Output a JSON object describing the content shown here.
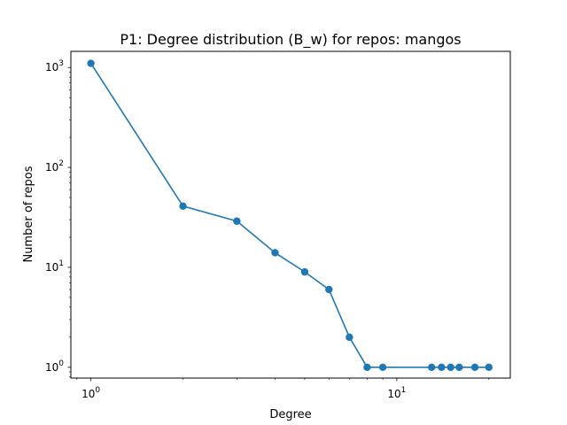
{
  "chart_data": {
    "type": "line",
    "title": "P1: Degree distribution (B_w) for repos: mangos",
    "xlabel": "Degree",
    "ylabel": "Number of repos",
    "xscale": "log",
    "yscale": "log",
    "xlim": [
      0.86,
      23.5
    ],
    "ylim": [
      0.78,
      1450
    ],
    "grid": false,
    "legend": "none",
    "x_ticks": [
      {
        "value": 1,
        "base": "10",
        "exp": "0"
      },
      {
        "value": 10,
        "base": "10",
        "exp": "1"
      }
    ],
    "y_ticks": [
      {
        "value": 1,
        "base": "10",
        "exp": "0"
      },
      {
        "value": 10,
        "base": "10",
        "exp": "1"
      },
      {
        "value": 100,
        "base": "10",
        "exp": "2"
      },
      {
        "value": 1000,
        "base": "10",
        "exp": "3"
      }
    ],
    "color": "#1f77b4",
    "series": [
      {
        "x": [
          1,
          2,
          3,
          4,
          5,
          6,
          7,
          8,
          9,
          13,
          14,
          15,
          16,
          18,
          20
        ],
        "y": [
          1100,
          41,
          29,
          14,
          9,
          6,
          2,
          1,
          1,
          1,
          1,
          1,
          1,
          1,
          1
        ]
      }
    ]
  }
}
